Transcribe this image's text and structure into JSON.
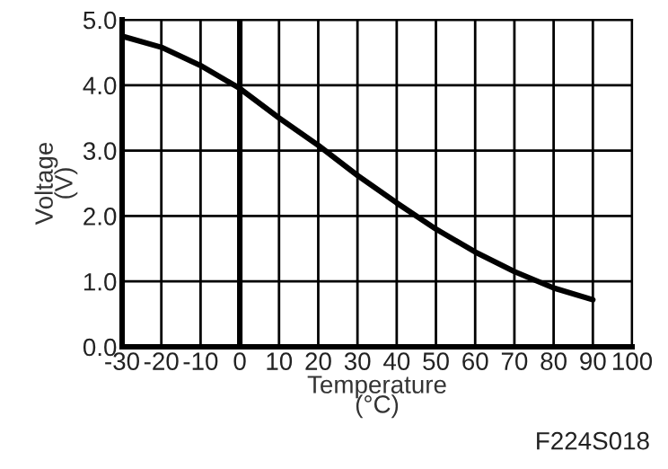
{
  "chart_data": {
    "type": "line",
    "xlabel": "Temperature\n(°C)",
    "ylabel": "Voltage\n(V)",
    "x": [
      -30,
      -20,
      -10,
      0,
      10,
      20,
      30,
      40,
      50,
      60,
      70,
      80,
      90
    ],
    "series": [
      {
        "color": "#000000",
        "values": [
          4.75,
          4.58,
          4.3,
          3.95,
          3.5,
          3.08,
          2.62,
          2.2,
          1.8,
          1.45,
          1.15,
          0.9,
          0.72
        ]
      }
    ],
    "xlim": [
      -30,
      100
    ],
    "xticks": [
      -30,
      -20,
      -10,
      0,
      10,
      20,
      30,
      40,
      50,
      60,
      70,
      80,
      90,
      100
    ],
    "ylim": [
      0,
      5
    ],
    "yticks": [
      {
        "value": 0,
        "label": "0.0"
      },
      {
        "value": 1,
        "label": "1.0"
      },
      {
        "value": 2,
        "label": "2.0"
      },
      {
        "value": 3,
        "label": "3.0"
      },
      {
        "value": 4,
        "label": "4.0"
      },
      {
        "value": 5,
        "label": "5.0"
      }
    ],
    "ref_lines": [
      {
        "axis": "x",
        "value": 0,
        "color": "#000000"
      }
    ],
    "grid": true,
    "marker": "none",
    "line_style": "solid",
    "annotations": [
      "F224S018"
    ]
  }
}
